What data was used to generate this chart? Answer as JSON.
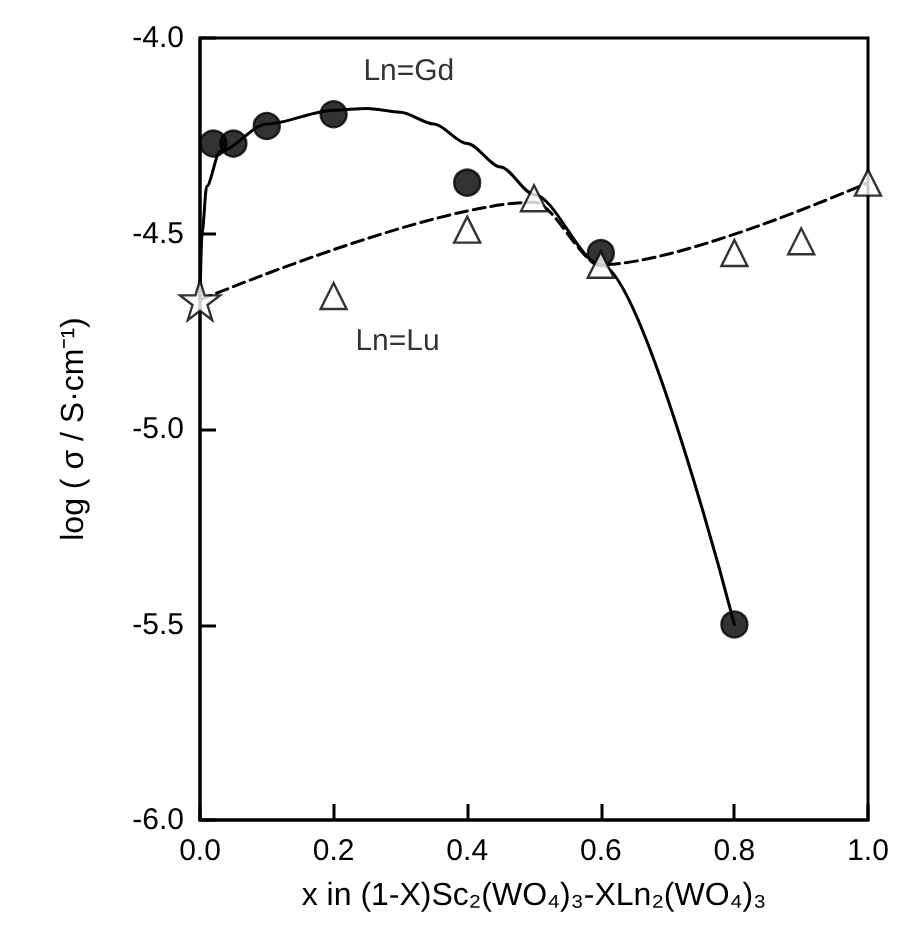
{
  "chart_data": {
    "type": "scatter",
    "xlabel": "x in (1-X)Sc₂(WO₄)₃-XLn₂(WO₄)₃",
    "ylabel": "log ( σ / S·cm⁻¹)",
    "xlim": [
      0,
      1
    ],
    "ylim": [
      -6,
      -4
    ],
    "xticks": [
      {
        "value": 0,
        "label": "0.0"
      },
      {
        "value": 0.2,
        "label": "0.2"
      },
      {
        "value": 0.4,
        "label": "0.4"
      },
      {
        "value": 0.6,
        "label": "0.6"
      },
      {
        "value": 0.8,
        "label": "0.8"
      },
      {
        "value": 1,
        "label": "1.0"
      }
    ],
    "yticks": [
      {
        "value": -6,
        "label": "-6.0"
      },
      {
        "value": -5.5,
        "label": "-5.5"
      },
      {
        "value": -5,
        "label": "-5.0"
      },
      {
        "value": -4.5,
        "label": "-4.5"
      },
      {
        "value": -4,
        "label": "-4.0"
      }
    ],
    "grid": false,
    "series": [
      {
        "type": "line",
        "color": "#000000",
        "marker": "none",
        "line_style": "solid",
        "x": [
          0,
          0.003,
          0.01,
          0.03,
          0.1,
          0.2,
          0.25,
          0.3,
          0.35,
          0.4,
          0.45,
          0.5,
          0.6,
          0.8
        ],
        "values": [
          -4.67,
          -4.5,
          -4.38,
          -4.29,
          -4.22,
          -4.185,
          -4.18,
          -4.19,
          -4.22,
          -4.27,
          -4.33,
          -4.4,
          -4.58,
          -5.5
        ]
      },
      {
        "type": "line",
        "color": "#000000",
        "marker": "none",
        "line_style": "dashed",
        "x": [
          0,
          0.5,
          0.6,
          1.0
        ],
        "values": [
          -4.67,
          -4.42,
          -4.58,
          -4.37
        ]
      },
      {
        "name": "Ln=Gd",
        "color": "#000000",
        "marker": "circle",
        "x": [
          0.02,
          0.05,
          0.1,
          0.2,
          0.4,
          0.6,
          0.8
        ],
        "values": [
          -4.27,
          -4.27,
          -4.225,
          -4.195,
          -4.37,
          -4.55,
          -5.5
        ]
      },
      {
        "name": "Ln=Lu",
        "color": "#000000",
        "marker": "triangle",
        "x": [
          0.2,
          0.4,
          0.5,
          0.6,
          0.8,
          0.9,
          1.0
        ],
        "values": [
          -4.66,
          -4.49,
          -4.41,
          -4.58,
          -4.55,
          -4.52,
          -4.37
        ]
      },
      {
        "color": "#000000",
        "marker": "star",
        "x": [
          0
        ],
        "values": [
          -4.67
        ]
      }
    ]
  }
}
